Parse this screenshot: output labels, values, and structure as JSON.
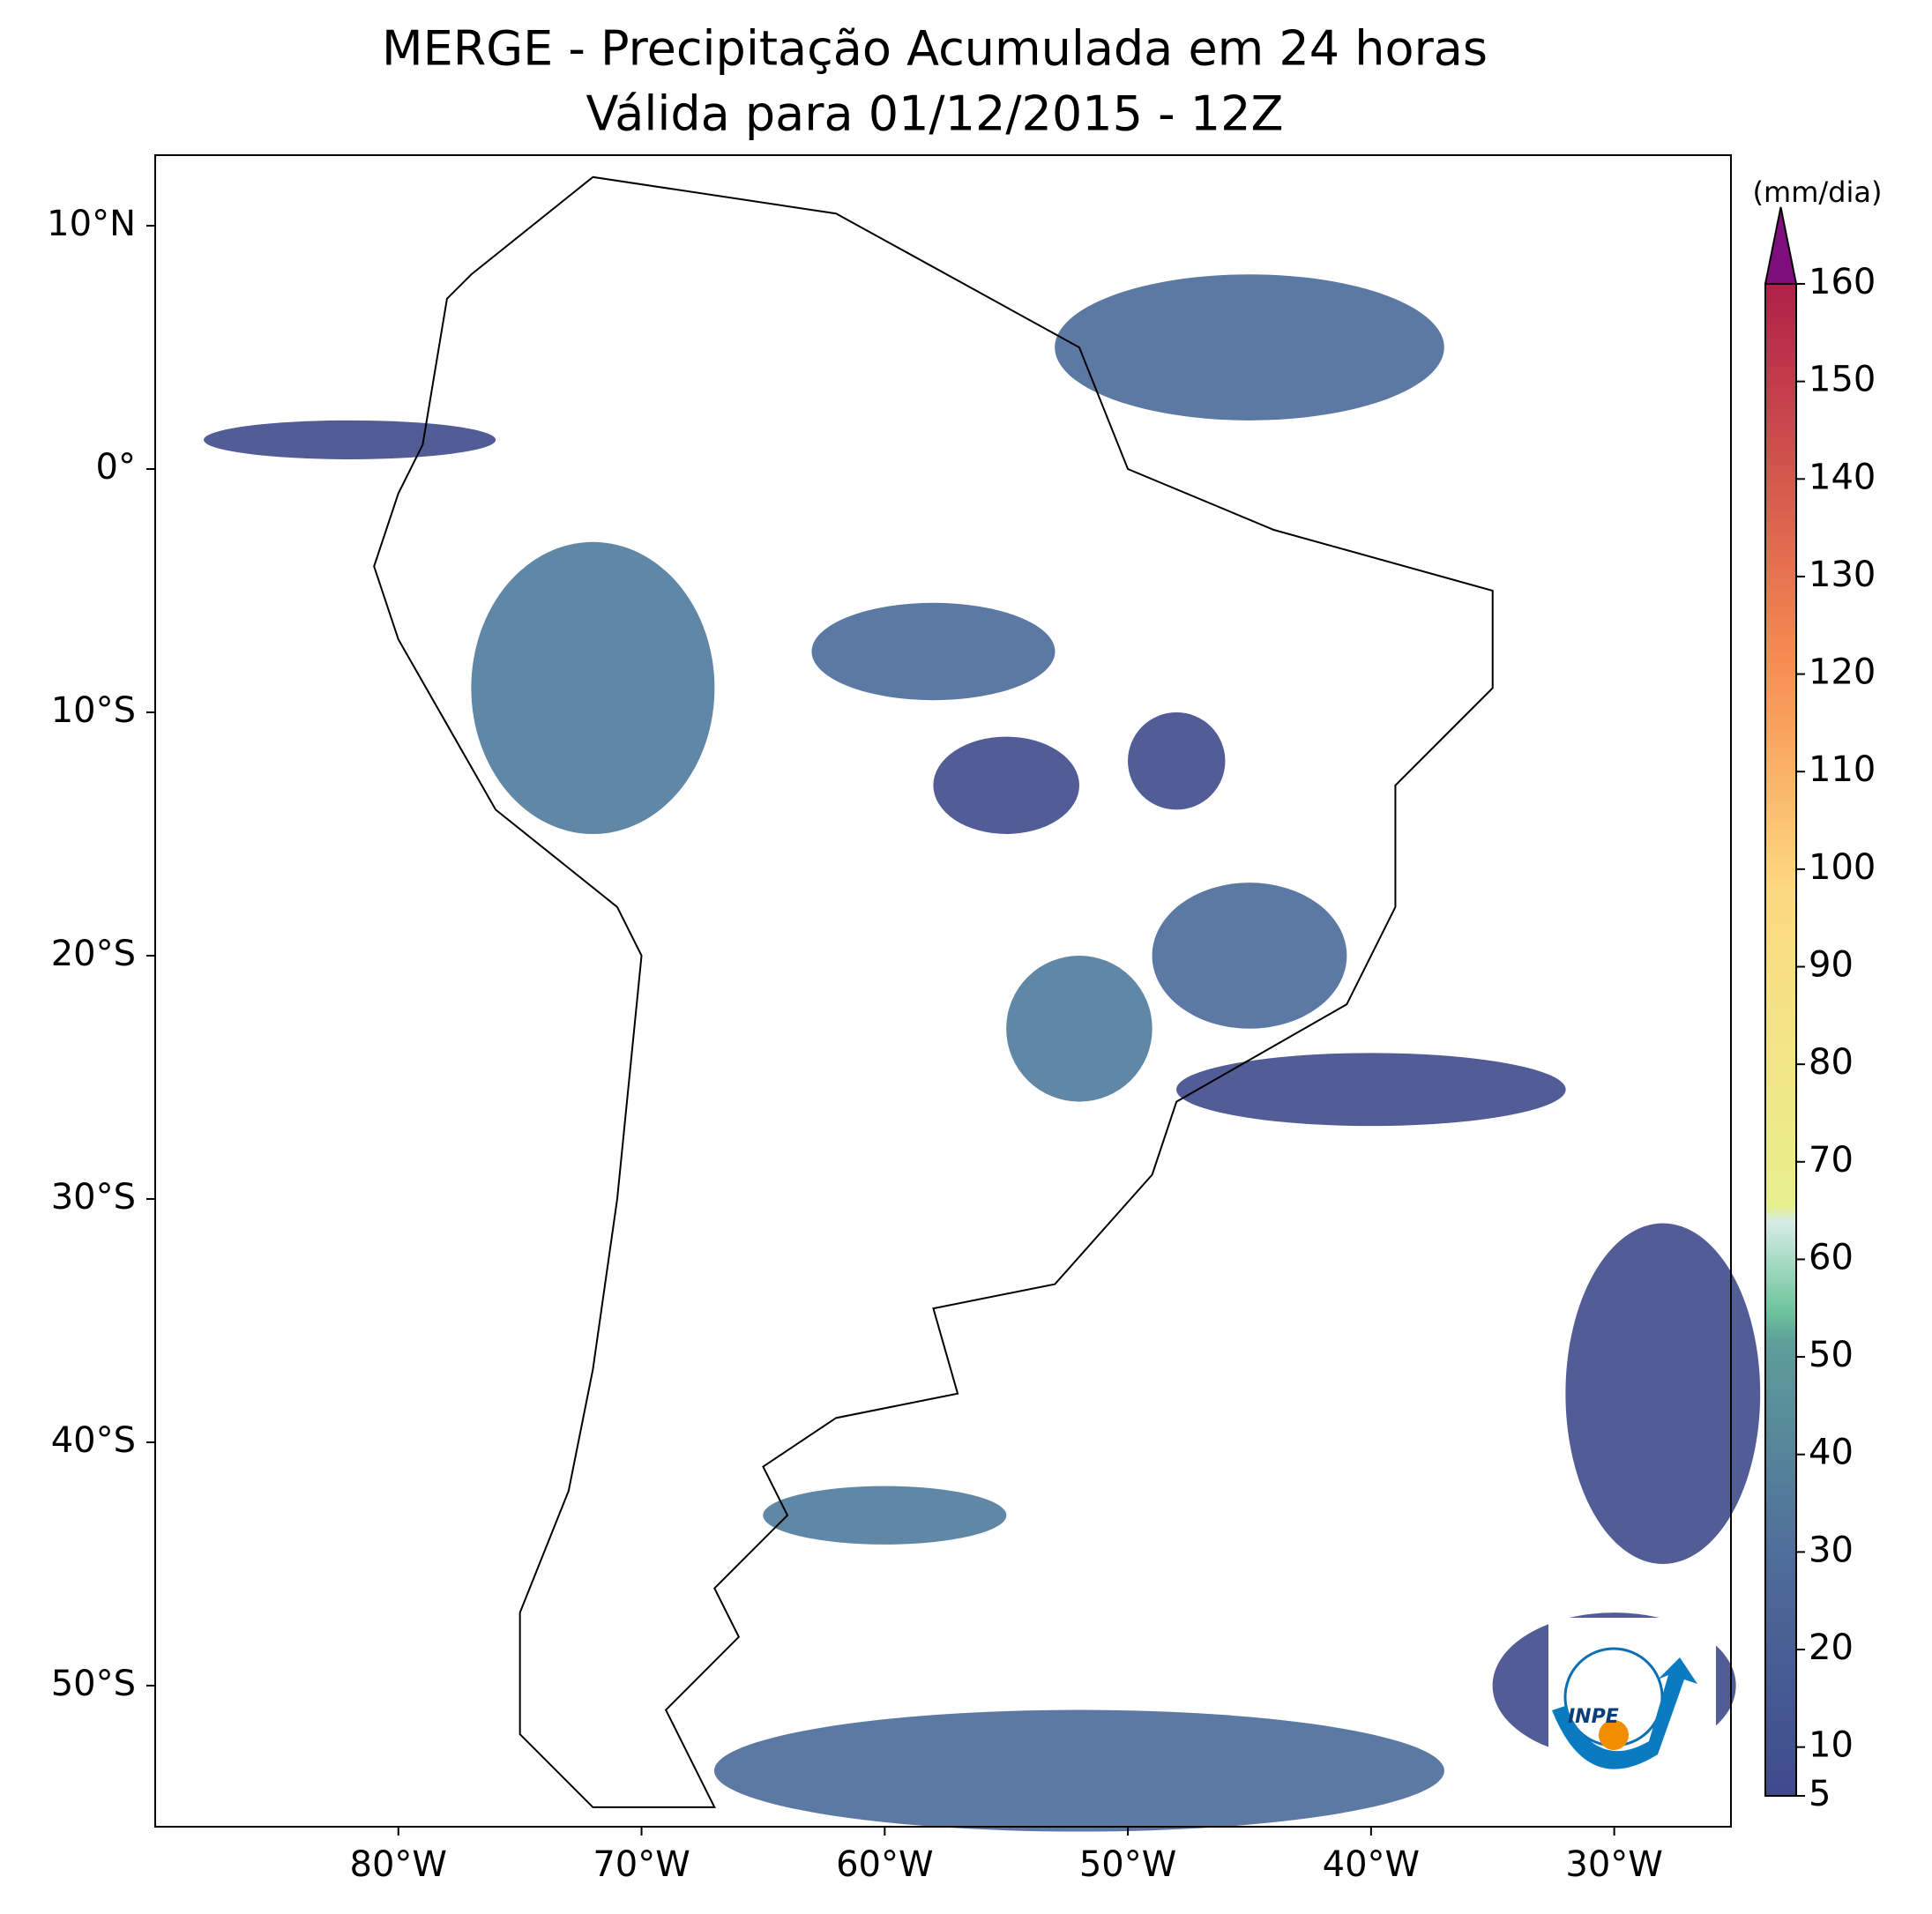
{
  "chart_data": {
    "type": "map",
    "title": "MERGE - Precipitação Acumulada em 24 horas",
    "subtitle": "Válida para 01/12/2015 - 12Z",
    "xlim": [
      -90,
      -25.2
    ],
    "ylim": [
      -55.8,
      12.9
    ],
    "xticks": [
      {
        "value": -80,
        "label": "80°W"
      },
      {
        "value": -70,
        "label": "70°W"
      },
      {
        "value": -60,
        "label": "60°W"
      },
      {
        "value": -50,
        "label": "50°W"
      },
      {
        "value": -40,
        "label": "40°W"
      },
      {
        "value": -30,
        "label": "30°W"
      }
    ],
    "yticks": [
      {
        "value": 10,
        "label": "10°N"
      },
      {
        "value": 0,
        "label": "0°"
      },
      {
        "value": -10,
        "label": "10°S"
      },
      {
        "value": -20,
        "label": "20°S"
      },
      {
        "value": -30,
        "label": "30°S"
      },
      {
        "value": -40,
        "label": "40°S"
      },
      {
        "value": -50,
        "label": "50°S"
      }
    ],
    "colorbar": {
      "label": "(mm/dia)",
      "lim": [
        5,
        160
      ],
      "ticks": [
        5,
        10,
        20,
        30,
        40,
        50,
        60,
        70,
        80,
        90,
        100,
        110,
        120,
        130,
        140,
        150,
        160
      ]
    },
    "logo_text": "INPE"
  }
}
